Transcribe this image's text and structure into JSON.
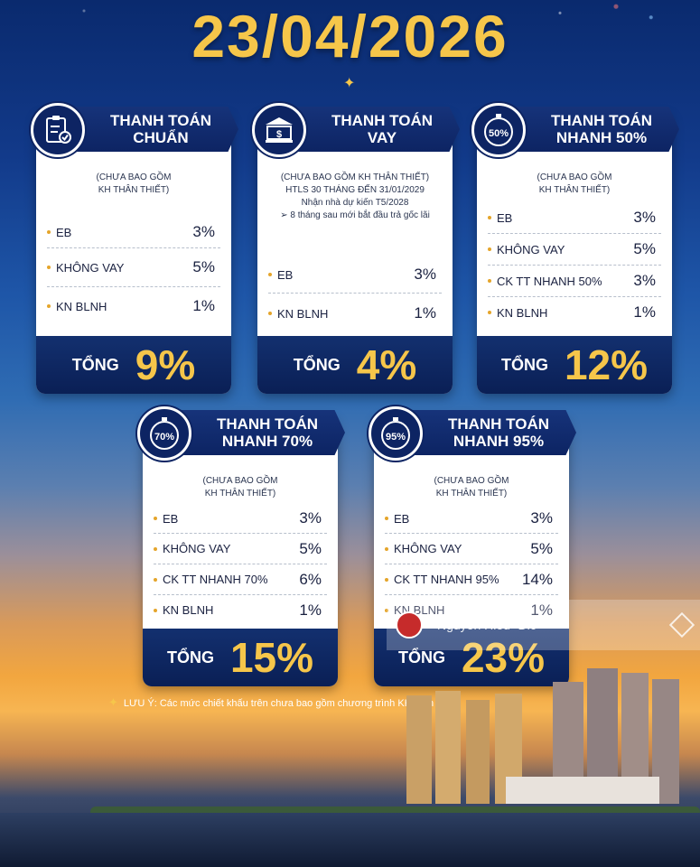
{
  "title": "23/04/2026",
  "cards": [
    {
      "heading_line1": "THANH TOÁN",
      "heading_line2": "CHUẨN",
      "icon": "checklist-icon",
      "icon_text": "",
      "note": [
        "(CHƯA BAO GỒM",
        "KH THÂN THIẾT)"
      ],
      "rows": [
        {
          "label": "EB",
          "value": "3%"
        },
        {
          "label": "KHÔNG VAY",
          "value": "5%"
        },
        {
          "label": "KN BLNH",
          "value": "1%"
        }
      ],
      "total_label": "TỔNG",
      "total_value": "9%"
    },
    {
      "heading_line1": "THANH TOÁN",
      "heading_line2": "VAY",
      "icon": "bank-icon",
      "icon_text": "",
      "note": [
        "(CHƯA BAO GỒM KH THÂN THIẾT)",
        "HTLS 30 THÁNG ĐẾN 31/01/2029",
        "Nhận nhà dự kiến T5/2028",
        "➢ 8 tháng sau mới bắt đầu trả gốc lãi"
      ],
      "rows": [
        {
          "label": "EB",
          "value": "3%"
        },
        {
          "label": "KN BLNH",
          "value": "1%"
        }
      ],
      "total_label": "TỔNG",
      "total_value": "4%"
    },
    {
      "heading_line1": "THANH TOÁN",
      "heading_line2": "NHANH 50%",
      "icon": "stopwatch-icon",
      "icon_text": "50%",
      "note": [
        "(CHƯA BAO GỒM",
        "KH THÂN THIẾT)"
      ],
      "rows": [
        {
          "label": "EB",
          "value": "3%"
        },
        {
          "label": "KHÔNG VAY",
          "value": "5%"
        },
        {
          "label": "CK TT NHANH 50%",
          "value": "3%"
        },
        {
          "label": "KN BLNH",
          "value": "1%"
        }
      ],
      "total_label": "TỔNG",
      "total_value": "12%"
    },
    {
      "heading_line1": "THANH TOÁN",
      "heading_line2": "NHANH 70%",
      "icon": "stopwatch-icon",
      "icon_text": "70%",
      "note": [
        "(CHƯA BAO GỒM",
        "KH THÂN THIẾT)"
      ],
      "rows": [
        {
          "label": "EB",
          "value": "3%"
        },
        {
          "label": "KHÔNG VAY",
          "value": "5%"
        },
        {
          "label": "CK TT NHANH 70%",
          "value": "6%"
        },
        {
          "label": "KN BLNH",
          "value": "1%"
        }
      ],
      "total_label": "TỔNG",
      "total_value": "15%"
    },
    {
      "heading_line1": "THANH TOÁN",
      "heading_line2": "NHANH 95%",
      "icon": "stopwatch-icon",
      "icon_text": "95%",
      "note": [
        "(CHƯA BAO GỒM",
        "KH THÂN THIẾT)"
      ],
      "rows": [
        {
          "label": "EB",
          "value": "3%"
        },
        {
          "label": "KHÔNG VAY",
          "value": "5%"
        },
        {
          "label": "CK TT NHANH 95%",
          "value": "14%"
        },
        {
          "label": "KN BLNH",
          "value": "1%"
        }
      ],
      "total_label": "TỔNG",
      "total_value": "23%"
    }
  ],
  "footnote": "LƯU Ý: Các mức chiết khấu trên chưa bao gồm chương trình KH thân thiết.",
  "watermark": {
    "name": "Nguyễn Hiếu- Dic",
    "icon": "layers-icon"
  },
  "colors": {
    "navy": "#0d2463",
    "gold": "#f6c64a"
  }
}
